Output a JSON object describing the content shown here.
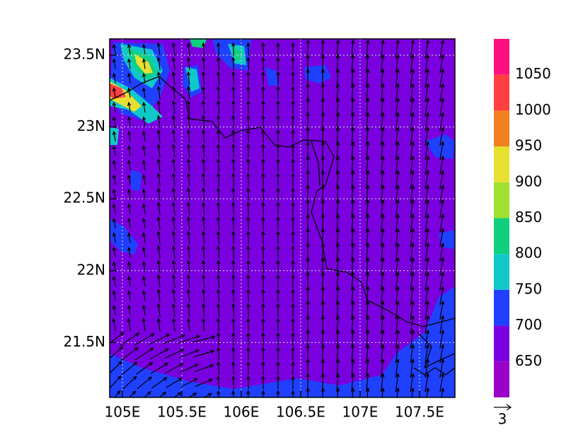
{
  "chart_data": {
    "type": "map",
    "xlim": [
      104.893,
      107.798
    ],
    "ylim": [
      21.118,
      23.613
    ],
    "xticks": [
      {
        "value": 105,
        "label": "105E"
      },
      {
        "value": 105.5,
        "label": "105.5E"
      },
      {
        "value": 106,
        "label": "106E"
      },
      {
        "value": 106.5,
        "label": "106.5E"
      },
      {
        "value": 107,
        "label": "107E"
      },
      {
        "value": 107.5,
        "label": "107.5E"
      }
    ],
    "yticks": [
      {
        "value": 21.5,
        "label": "21.5N"
      },
      {
        "value": 22,
        "label": "22N"
      },
      {
        "value": 22.5,
        "label": "22.5N"
      },
      {
        "value": 23,
        "label": "23N"
      },
      {
        "value": 23.5,
        "label": "23.5N"
      }
    ],
    "grid": true,
    "colorbar": {
      "levels": [
        650,
        700,
        750,
        800,
        850,
        900,
        950,
        1000,
        1050
      ],
      "colors": [
        "#9a00c8",
        "#7a00e0",
        "#2040ff",
        "#10c8c8",
        "#10d080",
        "#a0e030",
        "#e8e030",
        "#f08020",
        "#ff4040",
        "#ff1080"
      ]
    },
    "vector_reference": {
      "value": 3
    }
  }
}
